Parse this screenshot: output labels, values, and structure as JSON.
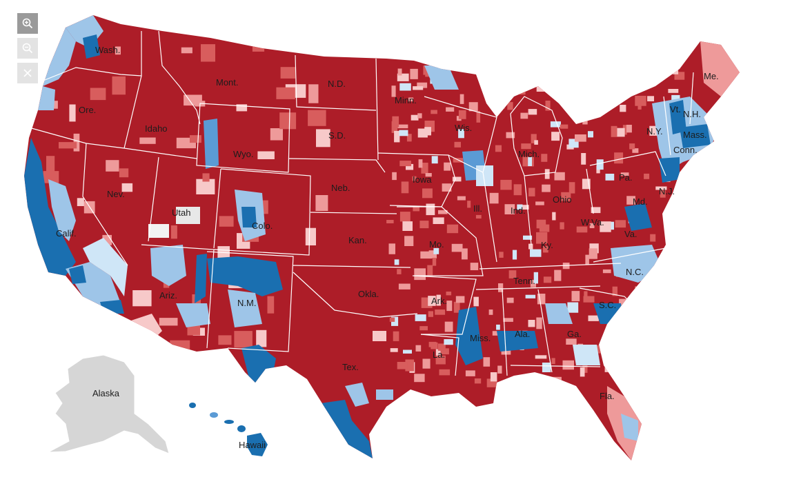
{
  "colors": {
    "solid_r": "#ad1d28",
    "mid_r": "#d85d5d",
    "light_r": "#ee9a9a",
    "lean_r": "#f7c9c9",
    "lean_d": "#cfe6f7",
    "light_d": "#9ec5e8",
    "mid_d": "#5b9bd5",
    "solid_d": "#1a6fb0",
    "no_data": "#e8e8e8",
    "non_contig": "#d6d6d6",
    "border": "#ffffff",
    "control_active": "#9a9a9a",
    "control_disabled": "#e3e3e3"
  },
  "controls": {
    "zoom_in_icon": "zoom-in-icon",
    "zoom_out_icon": "zoom-out-icon",
    "reset_icon": "close-icon"
  },
  "labels": {
    "wash": "Wash.",
    "ore": "Ore.",
    "calif": "Calif.",
    "nev": "Nev.",
    "idaho": "Idaho",
    "mont": "Mont.",
    "wyo": "Wyo.",
    "utah": "Utah",
    "ariz": "Ariz.",
    "colo": "Colo.",
    "nm": "N.M.",
    "nd": "N.D.",
    "sd": "S.D.",
    "neb": "Neb.",
    "kan": "Kan.",
    "okla": "Okla.",
    "tex": "Tex.",
    "minn": "Minn.",
    "iowa": "Iowa",
    "mo": "Mo.",
    "ark": "Ark.",
    "la": "La.",
    "wis": "Wis.",
    "ill": "Ill.",
    "mich": "Mich.",
    "ind": "Ind.",
    "ohio": "Ohio",
    "ky": "Ky.",
    "tenn": "Tenn.",
    "miss": "Miss.",
    "ala": "Ala.",
    "ga": "Ga.",
    "fla": "Fla.",
    "sc": "S.C.",
    "nc": "N.C.",
    "va": "Va.",
    "wva": "W.Va.",
    "pa": "Pa.",
    "ny": "N.Y.",
    "md": "Md.",
    "nj": "N.J.",
    "conn": "Conn.",
    "mass": "Mass.",
    "vt": "Vt.",
    "nh": "N.H.",
    "me": "Me.",
    "alaska": "Alaska",
    "hawaii": "Hawaii"
  }
}
